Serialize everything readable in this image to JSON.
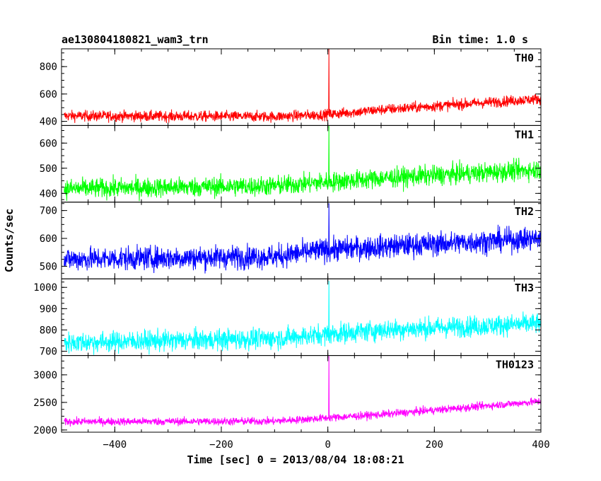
{
  "header": {
    "left_title": "ae130804180821_wam3_trn",
    "right_title": "Bin time: 1.0 s"
  },
  "chart_data": {
    "type": "line",
    "xlabel": "Time [sec] 0 = 2013/08/04 18:08:21",
    "ylabel": "Counts/sec",
    "xlim": [
      -500,
      400
    ],
    "xticks": [
      -400,
      -200,
      0,
      200,
      400
    ],
    "xtick_labels": [
      "−400",
      "−200",
      "0",
      "200",
      "400"
    ],
    "panels": [
      {
        "name": "TH0",
        "color": "#ff0000",
        "ylim": [
          370,
          930
        ],
        "yticks": [
          400,
          600,
          800
        ],
        "ytick_labels": [
          "400",
          "600",
          "800"
        ],
        "trend": [
          [
            -500,
            440
          ],
          [
            -100,
            435
          ],
          [
            0,
            450
          ],
          [
            100,
            485
          ],
          [
            400,
            565
          ]
        ],
        "noise": 28,
        "spike": {
          "x": 2,
          "y": 930
        }
      },
      {
        "name": "TH1",
        "color": "#00ff00",
        "ylim": [
          365,
          670
        ],
        "yticks": [
          400,
          500,
          600
        ],
        "ytick_labels": [
          "400",
          "500",
          "600"
        ],
        "trend": [
          [
            -500,
            418
          ],
          [
            -100,
            430
          ],
          [
            0,
            445
          ],
          [
            100,
            460
          ],
          [
            400,
            495
          ]
        ],
        "noise": 28,
        "spike": {
          "x": 2,
          "y": 668
        }
      },
      {
        "name": "TH2",
        "color": "#0000ff",
        "ylim": [
          455,
          730
        ],
        "yticks": [
          500,
          600,
          700
        ],
        "ytick_labels": [
          "500",
          "600",
          "700"
        ],
        "trend": [
          [
            -500,
            525
          ],
          [
            -100,
            535
          ],
          [
            0,
            560
          ],
          [
            100,
            570
          ],
          [
            400,
            600
          ]
        ],
        "noise": 30,
        "spike": {
          "x": 2,
          "y": 726
        }
      },
      {
        "name": "TH3",
        "color": "#00ffff",
        "ylim": [
          680,
          1040
        ],
        "yticks": [
          700,
          800,
          900,
          1000
        ],
        "ytick_labels": [
          "700",
          "800",
          "900",
          "1000"
        ],
        "trend": [
          [
            -500,
            740
          ],
          [
            -100,
            760
          ],
          [
            0,
            780
          ],
          [
            100,
            800
          ],
          [
            400,
            830
          ]
        ],
        "noise": 35,
        "spike": {
          "x": 2,
          "y": 1030
        }
      },
      {
        "name": "TH0123",
        "color": "#ff00ff",
        "ylim": [
          1960,
          3350
        ],
        "yticks": [
          2000,
          2500,
          3000
        ],
        "ytick_labels": [
          "2000",
          "2500",
          "3000"
        ],
        "trend": [
          [
            -500,
            2150
          ],
          [
            -100,
            2160
          ],
          [
            0,
            2220
          ],
          [
            100,
            2280
          ],
          [
            400,
            2520
          ]
        ],
        "noise": 50,
        "spike": {
          "x": 2,
          "y": 3340
        }
      }
    ]
  }
}
